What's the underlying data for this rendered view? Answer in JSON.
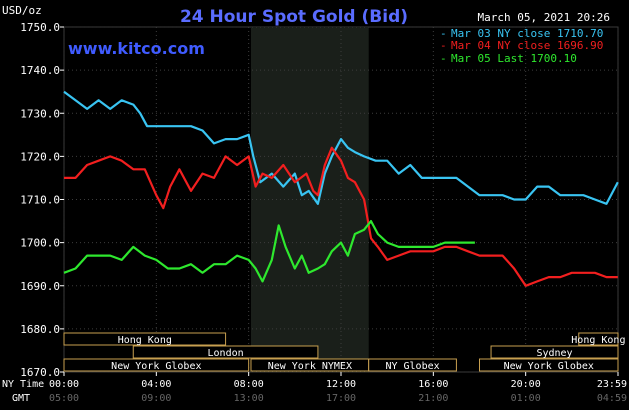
{
  "header": {
    "unit": "USD/oz",
    "title": "24 Hour Spot Gold (Bid)",
    "date": "March 05, 2021 20:26",
    "watermark": "www.kitco.com"
  },
  "legend": [
    {
      "label": "Mar 03 NY close 1710.70",
      "color": "#39c4f2"
    },
    {
      "label": "Mar 04 NY close 1696.90",
      "color": "#f21f1f"
    },
    {
      "label": "Mar 05 Last 1700.10",
      "color": "#2ee82e"
    }
  ],
  "markets": [
    {
      "name": "Hong Kong",
      "row": 0,
      "start": 0,
      "end": 7
    },
    {
      "name": "Hong Kong",
      "row": 0,
      "start": 22.3,
      "end": 24
    },
    {
      "name": "London",
      "row": 1,
      "start": 3,
      "end": 11
    },
    {
      "name": "Sydney",
      "row": 1,
      "start": 18.5,
      "end": 24
    },
    {
      "name": "New York Globex",
      "row": 2,
      "start": 0,
      "end": 8
    },
    {
      "name": "New York NYMEX",
      "row": 2,
      "start": 8.1,
      "end": 13.2
    },
    {
      "name": "NY Globex",
      "row": 2,
      "start": 13.2,
      "end": 17
    },
    {
      "name": "New York Globex",
      "row": 2,
      "start": 18,
      "end": 24
    }
  ],
  "x_axis": {
    "row1_label": "NY Time",
    "row2_label": "GMT",
    "ticks_ny": [
      "00:00",
      "04:00",
      "08:00",
      "12:00",
      "16:00",
      "20:00",
      "23:59"
    ],
    "ticks_gmt": [
      "05:00",
      "09:00",
      "13:00",
      "17:00",
      "21:00",
      "01:00",
      "04:59"
    ]
  },
  "chart_data": {
    "type": "line",
    "title": "24 Hour Spot Gold (Bid)",
    "ylabel": "USD/oz",
    "xlabel": "NY Time",
    "xlim": [
      0,
      24
    ],
    "ylim": [
      1670,
      1750
    ],
    "y_ticks": [
      "1670.0",
      "1680.0",
      "1690.0",
      "1700.0",
      "1710.0",
      "1720.0",
      "1730.0",
      "1740.0",
      "1750.0"
    ],
    "nymex_session": [
      8.1,
      13.2
    ],
    "grid": true,
    "legend_position": "top-right",
    "series": [
      {
        "name": "Mar 03 NY close 1710.70",
        "color": "#39c4f2",
        "x": [
          0,
          0.5,
          1,
          1.5,
          2,
          2.5,
          3,
          3.3,
          3.6,
          4,
          4.5,
          5,
          5.5,
          6,
          6.5,
          7,
          7.5,
          8,
          8.2,
          8.5,
          9,
          9.5,
          10,
          10.3,
          10.6,
          11,
          11.3,
          11.6,
          12,
          12.3,
          12.6,
          13,
          13.5,
          14,
          14.5,
          15,
          15.5,
          16,
          16.5,
          17,
          17.5,
          18,
          18.5,
          19,
          19.5,
          20,
          20.5,
          21,
          21.5,
          22,
          22.5,
          23,
          23.5,
          23.99
        ],
        "y": [
          1735,
          1733,
          1731,
          1733,
          1731,
          1733,
          1732,
          1730,
          1727,
          1727,
          1727,
          1727,
          1727,
          1726,
          1723,
          1724,
          1724,
          1725,
          1720,
          1714,
          1716,
          1713,
          1716,
          1711,
          1712,
          1709,
          1716,
          1720,
          1724,
          1722,
          1721,
          1720,
          1719,
          1719,
          1716,
          1718,
          1715,
          1715,
          1715,
          1715,
          1713,
          1711,
          1711,
          1711,
          1710,
          1710,
          1713,
          1713,
          1711,
          1711,
          1711,
          1710,
          1709,
          1714
        ]
      },
      {
        "name": "Mar 04 NY close 1696.90",
        "color": "#f21f1f",
        "x": [
          0,
          0.5,
          1,
          1.5,
          2,
          2.5,
          3,
          3.5,
          4,
          4.3,
          4.6,
          5,
          5.5,
          6,
          6.5,
          7,
          7.5,
          8,
          8.3,
          8.6,
          9,
          9.5,
          10,
          10.5,
          10.8,
          11,
          11.3,
          11.6,
          12,
          12.3,
          12.6,
          13,
          13.3,
          13.6,
          14,
          14.5,
          15,
          15.5,
          16,
          16.5,
          17,
          17.5,
          18,
          18.5,
          19,
          19.5,
          20,
          20.5,
          21,
          21.5,
          22,
          22.5,
          23,
          23.5,
          23.99
        ],
        "y": [
          1715,
          1715,
          1718,
          1719,
          1720,
          1719,
          1717,
          1717,
          1711,
          1708,
          1713,
          1717,
          1712,
          1716,
          1715,
          1720,
          1718,
          1720,
          1713,
          1716,
          1715,
          1718,
          1714,
          1716,
          1712,
          1711,
          1718,
          1722,
          1719,
          1715,
          1714,
          1710,
          1701,
          1699,
          1696,
          1697,
          1698,
          1698,
          1698,
          1699,
          1699,
          1698,
          1697,
          1697,
          1697,
          1694,
          1690,
          1691,
          1692,
          1692,
          1693,
          1693,
          1693,
          1692,
          1692
        ]
      },
      {
        "name": "Mar 05 Last 1700.10",
        "color": "#2ee82e",
        "x": [
          0,
          0.5,
          1,
          1.5,
          2,
          2.5,
          3,
          3.5,
          4,
          4.5,
          5,
          5.5,
          6,
          6.5,
          7,
          7.5,
          8,
          8.3,
          8.6,
          9,
          9.3,
          9.6,
          10,
          10.3,
          10.6,
          11,
          11.3,
          11.6,
          12,
          12.3,
          12.6,
          13,
          13.3,
          13.6,
          14,
          14.5,
          15,
          15.5,
          16,
          16.5,
          17,
          17.5,
          17.8
        ],
        "y": [
          1693,
          1694,
          1697,
          1697,
          1697,
          1696,
          1699,
          1697,
          1696,
          1694,
          1694,
          1695,
          1693,
          1695,
          1695,
          1697,
          1696,
          1694,
          1691,
          1696,
          1704,
          1699,
          1694,
          1697,
          1693,
          1694,
          1695,
          1698,
          1700,
          1697,
          1702,
          1703,
          1705,
          1702,
          1700,
          1699,
          1699,
          1699,
          1699,
          1700,
          1700,
          1700,
          1700
        ]
      }
    ]
  }
}
